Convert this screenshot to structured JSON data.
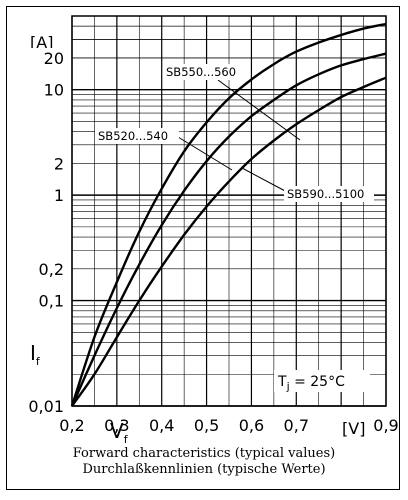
{
  "chart_data": {
    "type": "line",
    "x_unit": "[V]",
    "y_unit": "[A]",
    "xlim": [
      0.2,
      0.9
    ],
    "ylim": [
      0.01,
      50
    ],
    "y_scale": "log",
    "x_ticks": [
      "0,2",
      "0,3",
      "0,4",
      "0,5",
      "0,6",
      "0,7",
      "0,9"
    ],
    "x_tick_values": [
      0.2,
      0.3,
      0.4,
      0.5,
      0.6,
      0.7,
      0.9
    ],
    "y_ticks": [
      "0,01",
      "0,1",
      "0,2",
      "1",
      "2",
      "10",
      "20"
    ],
    "y_tick_values": [
      0.01,
      0.1,
      0.2,
      1,
      2,
      10,
      20
    ],
    "x_symbol": "V",
    "x_symbol_sub": "f",
    "y_symbol": "I",
    "y_symbol_sub": "f",
    "grid": true,
    "series": [
      {
        "name": "SB550...560",
        "x": [
          0.2,
          0.25,
          0.3,
          0.35,
          0.4,
          0.45,
          0.5,
          0.55,
          0.6,
          0.65,
          0.7,
          0.75,
          0.8,
          0.85,
          0.9
        ],
        "y": [
          0.01,
          0.045,
          0.15,
          0.45,
          1.15,
          2.6,
          4.9,
          8.3,
          12.5,
          17.5,
          23,
          28,
          33,
          38,
          42
        ]
      },
      {
        "name": "SB520...540",
        "x": [
          0.2,
          0.25,
          0.3,
          0.35,
          0.4,
          0.45,
          0.5,
          0.55,
          0.6,
          0.65,
          0.7,
          0.75,
          0.8,
          0.85,
          0.9
        ],
        "y": [
          0.01,
          0.03,
          0.085,
          0.22,
          0.52,
          1.1,
          2.1,
          3.6,
          5.6,
          8,
          11,
          14,
          17,
          19.5,
          22
        ]
      },
      {
        "name": "SB590...5100",
        "x": [
          0.2,
          0.25,
          0.3,
          0.35,
          0.4,
          0.45,
          0.5,
          0.55,
          0.6,
          0.65,
          0.7,
          0.75,
          0.8,
          0.85,
          0.9
        ],
        "y": [
          0.01,
          0.02,
          0.045,
          0.1,
          0.21,
          0.42,
          0.78,
          1.35,
          2.2,
          3.3,
          4.7,
          6.4,
          8.5,
          10.6,
          13
        ]
      }
    ],
    "annotation": {
      "prefix": "T",
      "sub": "j",
      "text": " = 25°C"
    }
  },
  "caption": {
    "line1": "Forward characteristics (typical values)",
    "line2": "Durchlaßkennlinien (typische Werte)"
  }
}
